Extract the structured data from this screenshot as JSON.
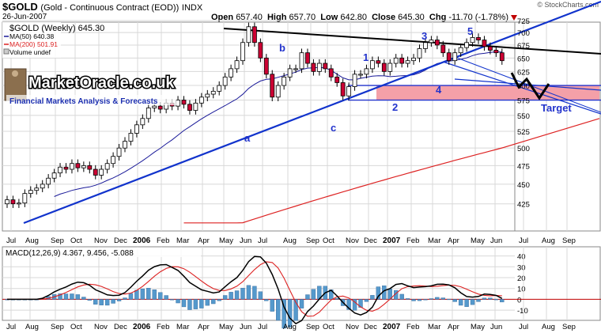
{
  "header": {
    "symbol": "$GOLD",
    "description": "(Gold - Continuous Contract (EOD))",
    "exchange": "INDX",
    "date": "26-Jun-2007",
    "open_label": "Open",
    "open": "657.40",
    "high_label": "High",
    "high": "657.70",
    "low_label": "Low",
    "low": "642.80",
    "close_label": "Close",
    "close": "645.30",
    "chg_label": "Chg",
    "chg": "-11.70 (-1.78%)",
    "credit": "© StockCharts.com"
  },
  "legend": {
    "main": "$GOLD (Weekly) 645.30",
    "ma50": "MA(50) 640.38",
    "ma200": "MA(200) 501.91",
    "volume": "Volume undef"
  },
  "watermark": {
    "brand": "MarketOracle.co.uk",
    "tagline": "Financial Markets Analysis & Forecasts"
  },
  "annotations": {
    "wave_labels": [
      "a",
      "b",
      "c",
      "1",
      "2",
      "3",
      "4",
      "5"
    ],
    "target": "Target"
  },
  "colors": {
    "up": "#ffffff",
    "down": "#cc0033",
    "ma50": "#1a1a99",
    "ma200": "#dd2222",
    "trend": "#1133cc",
    "resistance": "#000000",
    "target_zone": "#f4a0a8",
    "macd_line": "#000000",
    "signal_line": "#dd2222",
    "hist": "#5599cc",
    "grid": "#d8d8d8",
    "wave_label": "#2233cc"
  },
  "chart_data": [
    {
      "type": "candlestick",
      "title": "$GOLD (Weekly) 645.30",
      "x_axis_labels": [
        "Jul",
        "Aug",
        "Sep",
        "Oct",
        "Nov",
        "Dec",
        "2006",
        "Feb",
        "Mar",
        "Apr",
        "May",
        "Jun",
        "Jul",
        "Aug",
        "Sep",
        "Oct",
        "Nov",
        "Dec",
        "2007",
        "Feb",
        "Mar",
        "Apr",
        "May",
        "Jun",
        "Jul",
        "Aug",
        "Sep"
      ],
      "y_ticks": [
        425,
        450,
        475,
        500,
        525,
        550,
        575,
        600,
        625,
        650,
        675,
        700,
        725
      ],
      "ylim": [
        400,
        735
      ],
      "scale": "log",
      "weekly_closes": [
        430,
        425,
        426,
        438,
        442,
        445,
        450,
        458,
        465,
        473,
        470,
        478,
        472,
        475,
        470,
        462,
        470,
        478,
        488,
        500,
        510,
        522,
        535,
        545,
        562,
        565,
        560,
        570,
        565,
        575,
        568,
        558,
        570,
        580,
        585,
        590,
        600,
        615,
        630,
        645,
        680,
        712,
        680,
        650,
        620,
        580,
        600,
        615,
        630,
        630,
        660,
        640,
        625,
        640,
        630,
        615,
        605,
        582,
        598,
        620,
        620,
        630,
        645,
        640,
        625,
        640,
        650,
        640,
        645,
        650,
        668,
        680,
        685,
        675,
        660,
        645,
        660,
        670,
        680,
        690,
        685,
        672,
        665,
        660,
        645
      ],
      "series": [
        {
          "name": "MA(50)",
          "value": 640.38
        },
        {
          "name": "MA(200)",
          "value": 501.91
        }
      ],
      "ohlc_last": {
        "open": 657.4,
        "high": 657.7,
        "low": 642.8,
        "close": 645.3,
        "change": -11.7,
        "change_pct": -1.78
      },
      "legend": "top-left",
      "grid": true
    },
    {
      "type": "line",
      "title": "MACD(12,26,9) 4.367, 9.456, -5.088",
      "series": [
        {
          "name": "MACD",
          "value": 4.367
        },
        {
          "name": "Signal",
          "value": 9.456
        },
        {
          "name": "Histogram",
          "value": -5.088
        }
      ],
      "y_ticks": [
        -10,
        0,
        10,
        20,
        30,
        40
      ],
      "ylim": [
        -15,
        47
      ],
      "grid": true
    }
  ]
}
